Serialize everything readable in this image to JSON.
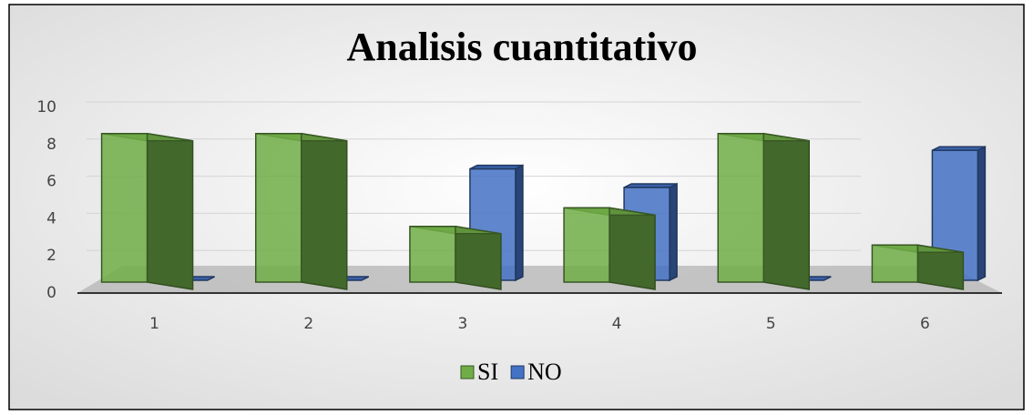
{
  "chart_data": {
    "type": "bar3d",
    "title": "Analisis cuantitativo",
    "categories": [
      "1",
      "2",
      "3",
      "4",
      "5",
      "6"
    ],
    "series": [
      {
        "name": "SI",
        "color": "#70ad47",
        "values": [
          8,
          8,
          3,
          4,
          8,
          2
        ]
      },
      {
        "name": "NO",
        "color": "#4472c4",
        "values": [
          0,
          0,
          6,
          5,
          0,
          7
        ]
      }
    ],
    "ylim": [
      0,
      10
    ],
    "yticks": [
      0,
      2,
      4,
      6,
      8,
      10
    ],
    "grid": true,
    "legend": "bottom"
  }
}
